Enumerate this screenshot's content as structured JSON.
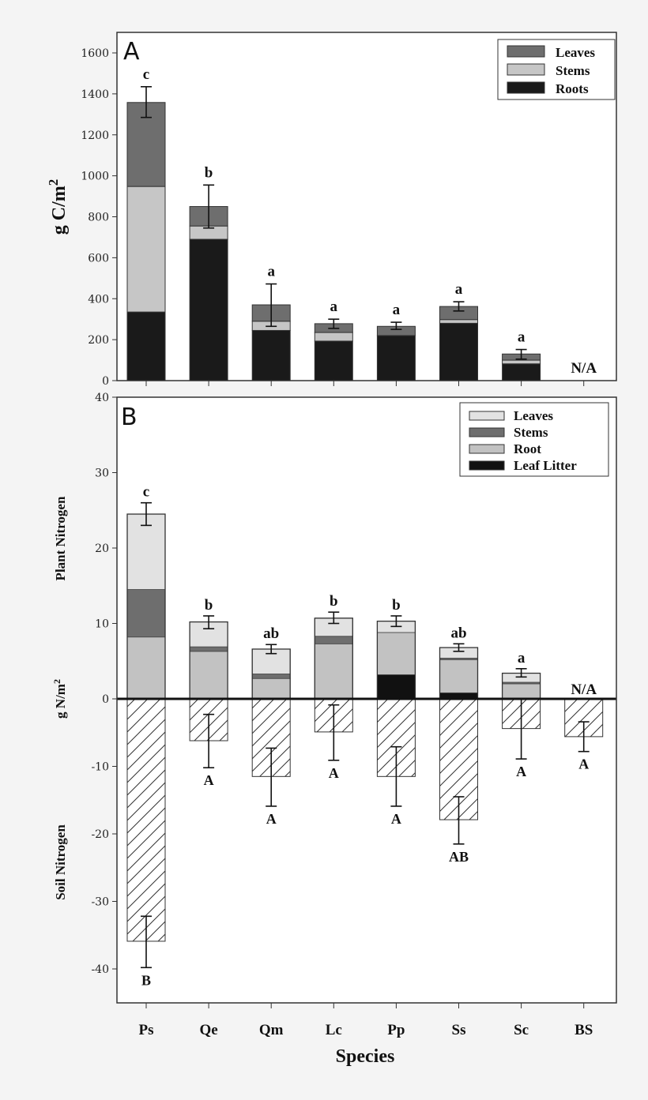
{
  "chart_data": [
    {
      "type": "bar",
      "stacked": true,
      "panel_label": "A",
      "ylabel": "g C/m2",
      "ylabel_base": "g C/m",
      "ylabel_sup": "2",
      "ylim": [
        0,
        1700
      ],
      "yticks": [
        0,
        200,
        400,
        600,
        800,
        1000,
        1200,
        1400,
        1600
      ],
      "categories": [
        "Ps",
        "Qe",
        "Qm",
        "Lc",
        "Pp",
        "Ss",
        "Sc",
        "BS"
      ],
      "legend_position": "top-right",
      "series": [
        {
          "name": "Roots",
          "color": "#1a1a1a",
          "values": [
            335,
            690,
            245,
            193,
            220,
            280,
            82,
            null
          ]
        },
        {
          "name": "Stems",
          "color": "#c6c6c6",
          "values": [
            613,
            65,
            45,
            42,
            0,
            18,
            18,
            null
          ]
        },
        {
          "name": "Leaves",
          "color": "#6e6e6e",
          "values": [
            410,
            95,
            80,
            43,
            45,
            64,
            30,
            null
          ]
        }
      ],
      "legend_order": [
        "Leaves",
        "Stems",
        "Roots"
      ],
      "error_bars": [
        [
          1285,
          1435
        ],
        [
          745,
          955
        ],
        [
          265,
          472
        ],
        [
          255,
          300
        ],
        [
          250,
          285
        ],
        [
          340,
          385
        ],
        [
          105,
          152
        ],
        null
      ],
      "significance_letters": [
        "c",
        "b",
        "a",
        "a",
        "a",
        "a",
        "a",
        "N/A"
      ]
    },
    {
      "type": "bar",
      "stacked": true,
      "panel_label": "B",
      "ylabel": "g N/m2",
      "ylabel_base": "g N/m",
      "ylabel_sup": "2",
      "ylabel_upper": "Plant Nitrogen",
      "ylabel_lower": "Soil Nitrogen",
      "xlabel": "Species",
      "ylim": [
        -45,
        40
      ],
      "yticks": [
        -40,
        -30,
        -20,
        -10,
        0,
        10,
        20,
        30,
        40
      ],
      "categories": [
        "Ps",
        "Qe",
        "Qm",
        "Lc",
        "Pp",
        "Ss",
        "Sc",
        "BS"
      ],
      "legend_position": "top-right",
      "series": [
        {
          "name": "Leaf Litter",
          "color": "#111111",
          "values": [
            0.1,
            0,
            0,
            0.1,
            3.2,
            0.8,
            0,
            null
          ]
        },
        {
          "name": "Root",
          "color": "#c2c2c2",
          "values": [
            8.1,
            6.3,
            2.7,
            7.2,
            5.6,
            4.4,
            2.0,
            null
          ]
        },
        {
          "name": "Stems",
          "color": "#6e6e6e",
          "values": [
            6.3,
            0.6,
            0.6,
            1.0,
            0,
            0.2,
            0.2,
            null
          ]
        },
        {
          "name": "Leaves",
          "color": "#e2e2e2",
          "values": [
            10.0,
            3.3,
            3.3,
            2.4,
            1.5,
            1.4,
            1.2,
            null
          ]
        }
      ],
      "legend_order": [
        "Leaves",
        "Stems",
        "Root",
        "Leaf Litter"
      ],
      "plant_error_bars": [
        [
          23.0,
          26.0
        ],
        [
          9.3,
          11.0
        ],
        [
          6.0,
          7.2
        ],
        [
          10.0,
          11.5
        ],
        [
          9.6,
          11.0
        ],
        [
          6.3,
          7.3
        ],
        [
          2.9,
          4.0
        ],
        null
      ],
      "plant_letters": [
        "c",
        "b",
        "ab",
        "b",
        "b",
        "ab",
        "a",
        "N/A"
      ],
      "soil_values": [
        -35.9,
        -6.2,
        -11.5,
        -4.9,
        -11.5,
        -17.9,
        -4.4,
        -5.6
      ],
      "soil_error_bars": [
        [
          -32.2,
          -39.8
        ],
        [
          -2.3,
          -10.2
        ],
        [
          -7.3,
          -15.9
        ],
        [
          -0.9,
          -9.1
        ],
        [
          -7.1,
          -15.9
        ],
        [
          -14.5,
          -21.5
        ],
        [
          0,
          -8.9
        ],
        [
          -3.4,
          -7.8
        ]
      ],
      "soil_letters": [
        "B",
        "A",
        "A",
        "A",
        "A",
        "AB",
        "A",
        "A"
      ],
      "soil_pattern": "diagonal-hatch"
    }
  ]
}
